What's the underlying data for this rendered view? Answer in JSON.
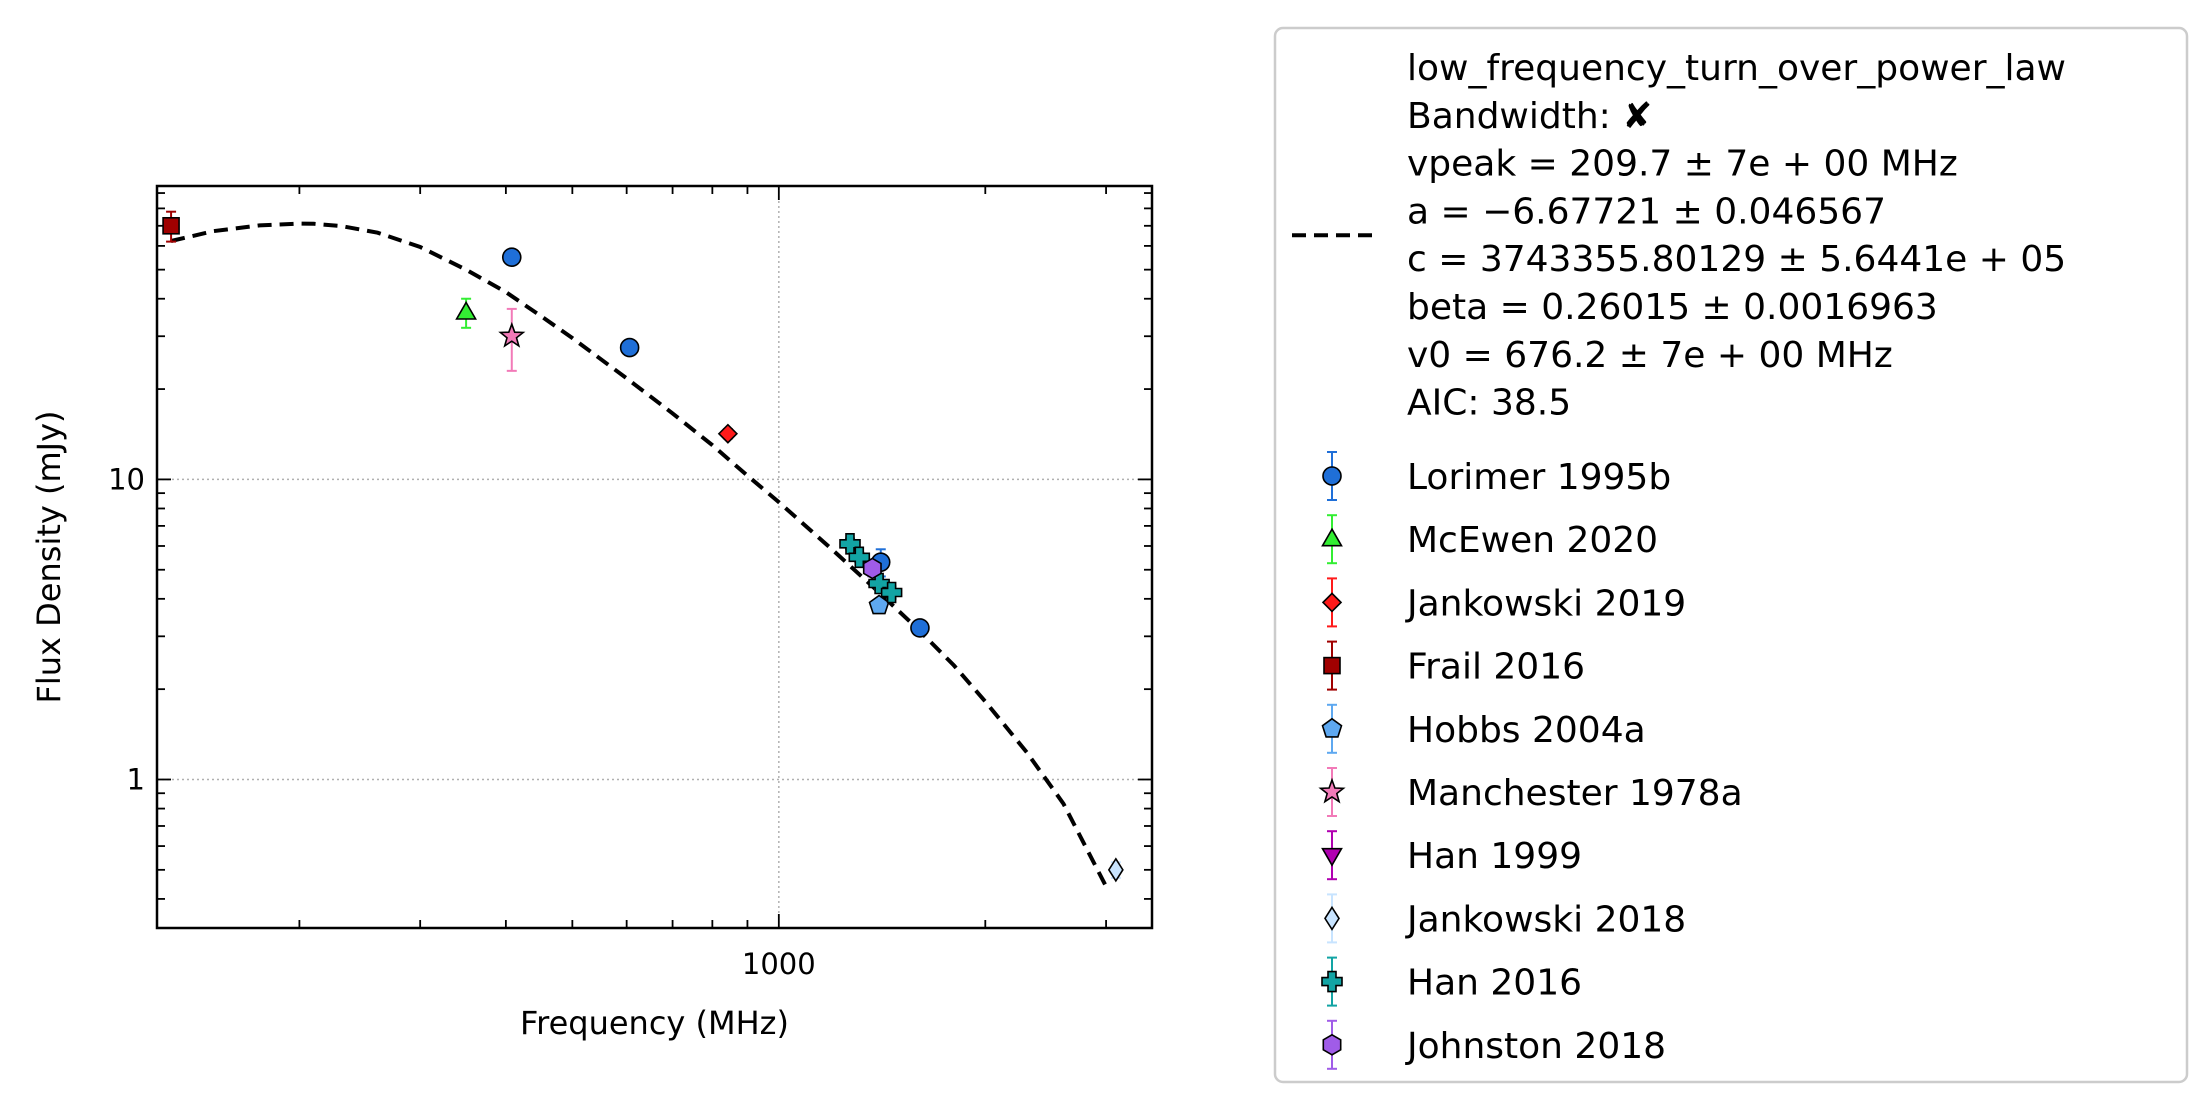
{
  "chart_data": {
    "type": "scatter",
    "xlabel": "Frequency (MHz)",
    "ylabel": "Flux Density (mJy)",
    "x_scale": "log",
    "y_scale": "log",
    "xlim": [
      124,
      3500
    ],
    "ylim": [
      0.32,
      95
    ],
    "x_tick_labels": [
      {
        "value": 1000,
        "label": "1000"
      }
    ],
    "y_tick_labels": [
      {
        "value": 1,
        "label": "1"
      },
      {
        "value": 10,
        "label": "10"
      }
    ],
    "grid": true,
    "legend_placement": "outside-right",
    "fit": {
      "name": "low_frequency_turn_over_power_law",
      "lines": [
        "low_frequency_turn_over_power_law",
        "Bandwidth: ✘",
        "vpeak = 209.7 ± 7e + 00 MHz",
        "a = −6.67721 ± 0.046567",
        "c = 3743355.80129 ± 5.6441e + 05",
        "beta = 0.26015 ± 0.0016963",
        "v0 = 676.2 ± 7e + 00 MHz",
        "AIC: 38.5"
      ],
      "style": "dashed",
      "color": "#000000",
      "x": [
        130,
        150,
        175,
        200,
        210,
        230,
        260,
        300,
        350,
        400,
        450,
        500,
        600,
        700,
        800,
        900,
        1000,
        1200,
        1400,
        1600,
        1800,
        2000,
        2300,
        2600,
        3000
      ],
      "y": [
        62.3,
        67.2,
        70.2,
        71.2,
        71.1,
        69.9,
        66.4,
        59.5,
        50.0,
        42.1,
        35.0,
        29.6,
        21.7,
        16.6,
        13.0,
        10.3,
        8.4,
        5.8,
        4.2,
        3.15,
        2.4,
        1.82,
        1.23,
        0.83,
        0.44
      ]
    },
    "series": [
      {
        "name": "Lorimer 1995b",
        "marker": "circle",
        "color": "#1f6fd8",
        "points": [
          {
            "x": 408,
            "y": 55,
            "err": 1.5
          },
          {
            "x": 606,
            "y": 27.5,
            "err": 0.8
          },
          {
            "x": 1408,
            "y": 5.3,
            "err": 0.55
          },
          {
            "x": 1606,
            "y": 3.2,
            "err": 0.12
          }
        ]
      },
      {
        "name": "McEwen 2020",
        "marker": "triangle-up",
        "color": "#33ee33",
        "points": [
          {
            "x": 350,
            "y": 36,
            "err": 4
          }
        ]
      },
      {
        "name": "Jankowski 2019",
        "marker": "diamond",
        "color": "#ff1a1a",
        "points": [
          {
            "x": 843,
            "y": 14.2,
            "err": 0.5
          }
        ]
      },
      {
        "name": "Frail 2016",
        "marker": "square",
        "color": "#a00000",
        "points": [
          {
            "x": 130,
            "y": 70,
            "err": 8
          }
        ]
      },
      {
        "name": "Hobbs 2004a",
        "marker": "pentagon",
        "color": "#5ea8f0",
        "points": [
          {
            "x": 1400,
            "y": 3.8,
            "err": 0.15
          }
        ]
      },
      {
        "name": "Manchester 1978a",
        "marker": "star",
        "color": "#f27ab8",
        "points": [
          {
            "x": 408,
            "y": 30,
            "err": 7
          }
        ]
      },
      {
        "name": "Han 1999",
        "marker": "triangle-down",
        "color": "#b000b0",
        "points": []
      },
      {
        "name": "Jankowski 2018",
        "marker": "thin-diamond",
        "color": "#c8e4ff",
        "points": [
          {
            "x": 3100,
            "y": 0.5,
            "err": 0.03
          }
        ]
      },
      {
        "name": "Han 2016",
        "marker": "plus",
        "color": "#12a4a4",
        "points": [
          {
            "x": 1270,
            "y": 6.1,
            "err": 0.25
          },
          {
            "x": 1310,
            "y": 5.5,
            "err": 0.2
          },
          {
            "x": 1400,
            "y": 4.5,
            "err": 0.2
          },
          {
            "x": 1460,
            "y": 4.2,
            "err": 0.2
          }
        ]
      },
      {
        "name": "Johnston 2018",
        "marker": "hexagon",
        "color": "#a05ce8",
        "points": [
          {
            "x": 1369,
            "y": 5.05,
            "err": 0.3
          }
        ]
      }
    ]
  }
}
